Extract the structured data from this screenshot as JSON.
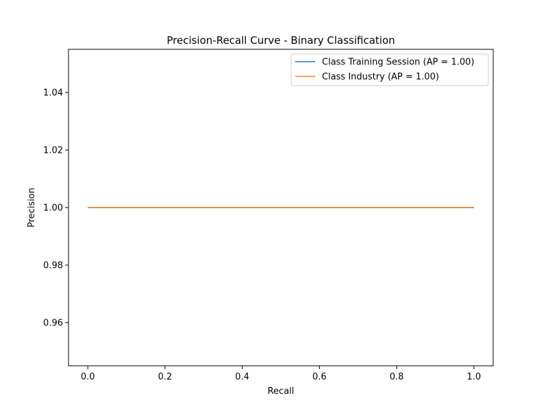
{
  "chart_data": {
    "type": "line",
    "title": "Precision-Recall Curve - Binary Classification",
    "xlabel": "Recall",
    "ylabel": "Precision",
    "xlim": [
      -0.05,
      1.05
    ],
    "ylim": [
      0.945,
      1.055
    ],
    "x_ticks": [
      0.0,
      0.2,
      0.4,
      0.6,
      0.8,
      1.0
    ],
    "x_tick_labels": [
      "0.0",
      "0.2",
      "0.4",
      "0.6",
      "0.8",
      "1.0"
    ],
    "y_ticks": [
      0.96,
      0.98,
      1.0,
      1.02,
      1.04
    ],
    "y_tick_labels": [
      "0.96",
      "0.98",
      "1.00",
      "1.02",
      "1.04"
    ],
    "grid": false,
    "legend_position": "upper-right",
    "series": [
      {
        "name": "Class Training Session (AP = 1.00)",
        "color": "#1f77b4",
        "x": [
          0.0,
          1.0
        ],
        "y": [
          1.0,
          1.0
        ]
      },
      {
        "name": "Class Industry (AP = 1.00)",
        "color": "#ff7f0e",
        "x": [
          0.0,
          1.0
        ],
        "y": [
          1.0,
          1.0
        ]
      }
    ]
  }
}
